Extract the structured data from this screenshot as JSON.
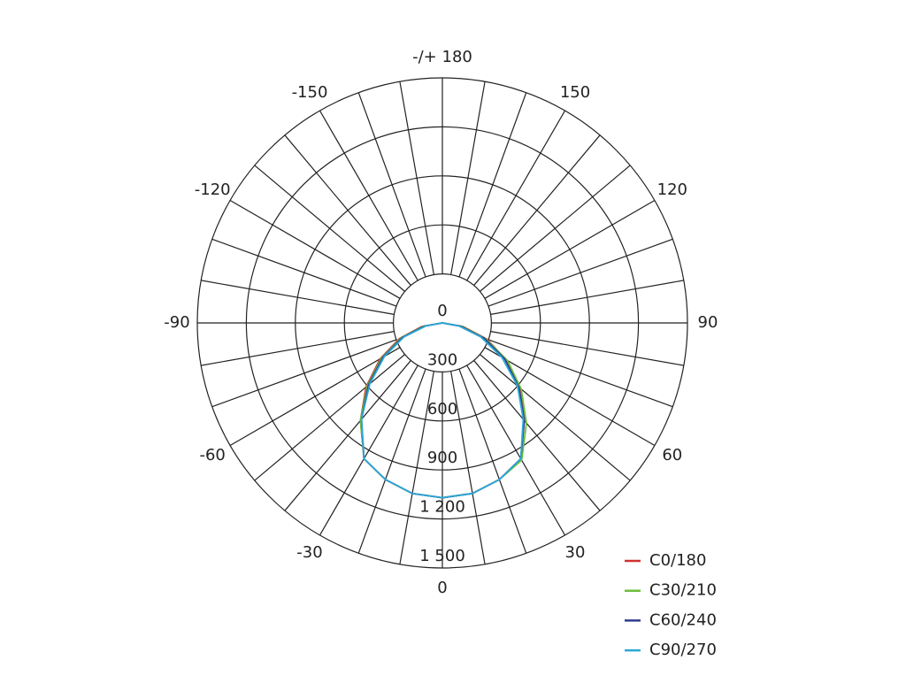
{
  "chart_data": {
    "type": "polar",
    "x": [
      -90,
      -80,
      -70,
      -60,
      -50,
      -40,
      -30,
      -20,
      -10,
      0,
      10,
      20,
      30,
      40,
      50,
      60,
      70,
      80,
      90
    ],
    "series": [
      {
        "name": "C0/180",
        "color": "#d03030",
        "values": [
          0,
          130,
          280,
          440,
          610,
          780,
          960,
          1020,
          1060,
          1070,
          1060,
          1020,
          960,
          780,
          620,
          450,
          290,
          130,
          0
        ]
      },
      {
        "name": "C30/210",
        "color": "#6cbf3c",
        "values": [
          0,
          120,
          270,
          430,
          600,
          780,
          960,
          1020,
          1060,
          1070,
          1060,
          1020,
          970,
          800,
          630,
          460,
          280,
          120,
          0
        ]
      },
      {
        "name": "C60/240",
        "color": "#2e3d8f",
        "values": [
          0,
          110,
          260,
          420,
          590,
          770,
          960,
          1020,
          1060,
          1070,
          1060,
          1020,
          960,
          780,
          610,
          440,
          270,
          110,
          0
        ]
      },
      {
        "name": "C90/270",
        "color": "#2aa8d8",
        "values": [
          0,
          100,
          250,
          410,
          580,
          770,
          960,
          1020,
          1060,
          1070,
          1060,
          1020,
          960,
          770,
          600,
          420,
          250,
          100,
          0
        ]
      }
    ],
    "xticks": [
      -150,
      -120,
      -90,
      -60,
      -30,
      0,
      30,
      60,
      90,
      120,
      150,
      {
        "value": 180,
        "label": "-/+ 180"
      }
    ],
    "rlim": [
      0,
      1500
    ],
    "rticks": [
      0,
      300,
      600,
      900,
      {
        "value": 1200,
        "label": "1 200"
      },
      {
        "value": 1500,
        "label": "1 500"
      }
    ]
  }
}
